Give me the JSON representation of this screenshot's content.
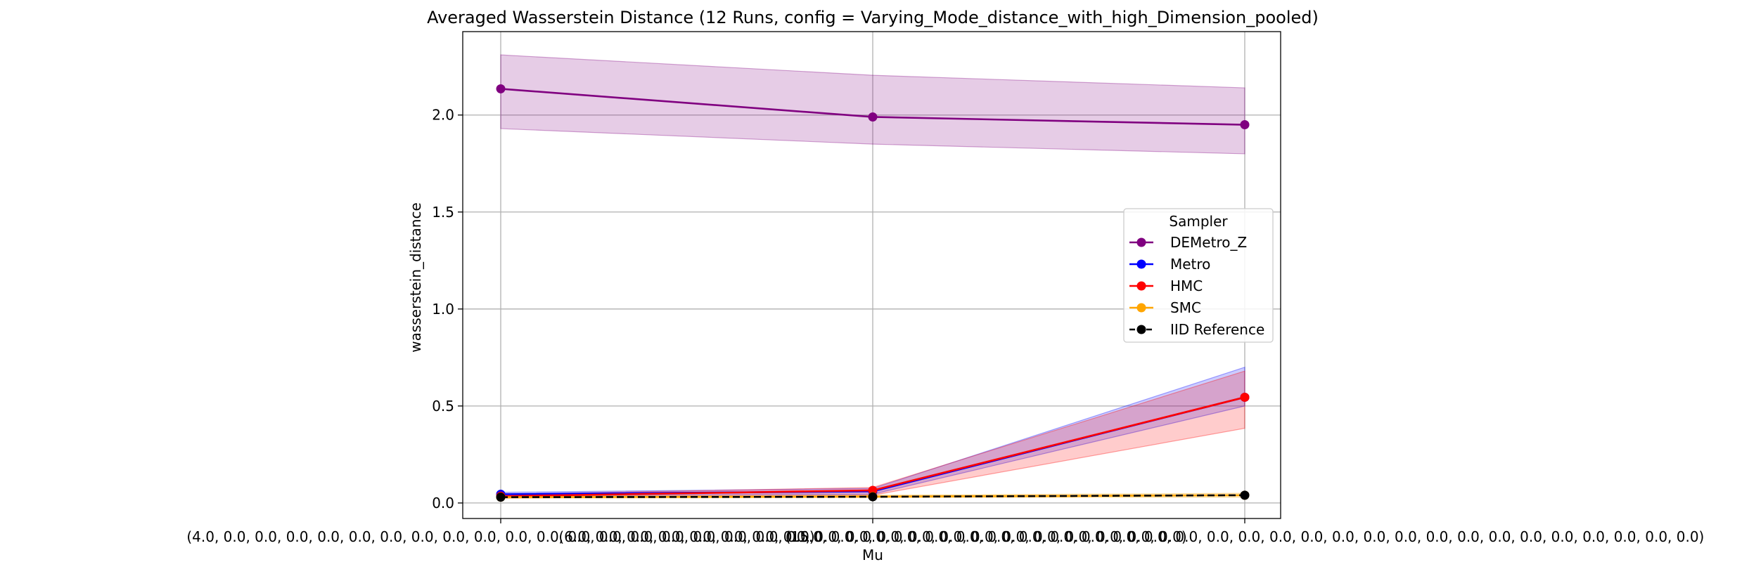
{
  "chart_data": {
    "type": "line",
    "title": "Averaged Wasserstein Distance (12 Runs, config = Varying_Mode_distance_with_high_Dimension_pooled)",
    "xlabel": "Mu",
    "ylabel": "wasserstein_distance",
    "categories": [
      "(4.0, 0.0, 0.0, 0.0, 0.0, 0.0, 0.0, 0.0, 0.0, 0.0, 0.0, 0.0, 0.0, 0.0, 0.0, 0.0, 0.0, 0.0, 0.0, 0.0)",
      "(6.0, 0.0, 0.0, 0.0, 0.0, 0.0, 0.0, 0.0, 0.0, 0.0, 0.0, 0.0, 0.0, 0.0, 0.0, 0.0, 0.0, 0.0, 0.0, 0.0)",
      "(15.0, 0.0, 0.0, 0.0, 0.0, 0.0, 0.0, 0.0, 0.0, 0.0, 0.0, 0.0, 0.0, 0.0, 0.0, 0.0, 0.0, 0.0, 0.0, 0.0, 0.0, 0.0, 0.0, 0.0, 0.0, 0.0, 0.0, 0.0, 0.0)"
    ],
    "yticks": [
      "0.0",
      "0.5",
      "1.0",
      "1.5",
      "2.0"
    ],
    "ylim": [
      -0.08,
      2.43
    ],
    "grid": true,
    "legend": {
      "title": "Sampler",
      "placement": "center-right"
    },
    "series": [
      {
        "name": "DEMetro_Z",
        "color": "#800080",
        "dashed": false,
        "values": [
          2.135,
          1.99,
          1.95
        ],
        "lower": [
          1.93,
          1.85,
          1.8
        ],
        "upper": [
          2.31,
          2.205,
          2.14
        ]
      },
      {
        "name": "Metro",
        "color": "#0000ff",
        "dashed": false,
        "values": [
          0.045,
          0.06,
          0.545
        ],
        "lower": [
          0.035,
          0.045,
          0.5
        ],
        "upper": [
          0.055,
          0.075,
          0.7
        ]
      },
      {
        "name": "HMC",
        "color": "#ff0000",
        "dashed": false,
        "values": [
          0.035,
          0.065,
          0.545
        ],
        "lower": [
          0.025,
          0.04,
          0.385
        ],
        "upper": [
          0.045,
          0.08,
          0.68
        ]
      },
      {
        "name": "SMC",
        "color": "#ffa500",
        "dashed": false,
        "values": [
          0.03,
          0.033,
          0.04
        ],
        "lower": [
          0.025,
          0.028,
          0.03
        ],
        "upper": [
          0.035,
          0.04,
          0.05
        ]
      },
      {
        "name": "IID Reference",
        "color": "#000000",
        "dashed": true,
        "values": [
          0.03,
          0.032,
          0.04
        ]
      }
    ]
  }
}
